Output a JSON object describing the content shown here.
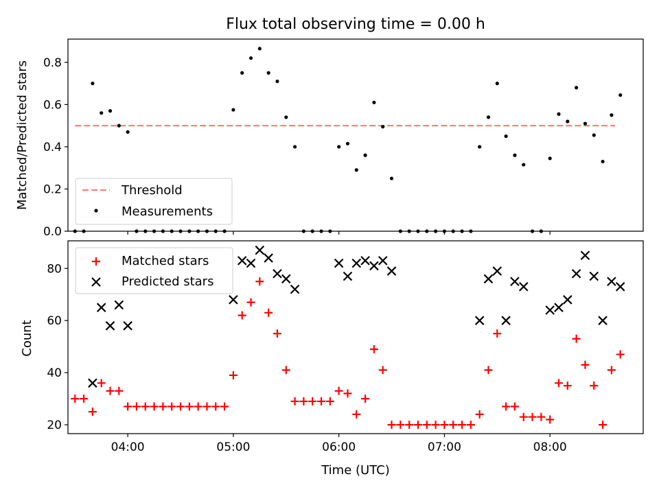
{
  "title": "Flux total observing time = 0.00 h",
  "colors": {
    "threshold": "#ff7f7f",
    "measurements": "#000000",
    "matched": "#ff0000",
    "predicted": "#000000"
  },
  "chart_data": [
    {
      "type": "scatter",
      "title": "Flux total observing time = 0.00 h",
      "xlabel": "",
      "ylabel": "Matched/Predicted stars",
      "xlim": [
        "03:26",
        "08:53"
      ],
      "ylim": [
        0,
        0.91
      ],
      "yticks": [
        "0.0",
        "0.2",
        "0.4",
        "0.6",
        "0.8"
      ],
      "xticks": [
        "04:00",
        "05:00",
        "06:00",
        "07:00",
        "08:00"
      ],
      "show_xticklabels": false,
      "grid": false,
      "legend": {
        "position": "lower left",
        "entries": [
          {
            "label": "Threshold",
            "style": "dashed-line"
          },
          {
            "label": "Measurements",
            "style": "dot"
          }
        ]
      },
      "series": [
        {
          "name": "Threshold",
          "kind": "line",
          "x": [
            "03:30",
            "08:37"
          ],
          "y": [
            0.5,
            0.5
          ]
        },
        {
          "name": "Measurements",
          "kind": "scatter",
          "x": [
            "03:30",
            "03:35",
            "03:40",
            "03:45",
            "03:50",
            "03:55",
            "04:00",
            "04:05",
            "04:10",
            "04:15",
            "04:20",
            "04:25",
            "04:30",
            "04:35",
            "04:40",
            "04:45",
            "04:50",
            "04:55",
            "05:00",
            "05:05",
            "05:10",
            "05:15",
            "05:20",
            "05:25",
            "05:30",
            "05:35",
            "05:40",
            "05:45",
            "05:50",
            "05:55",
            "06:00",
            "06:05",
            "06:10",
            "06:15",
            "06:20",
            "06:25",
            "06:30",
            "06:35",
            "06:40",
            "06:45",
            "06:50",
            "06:55",
            "07:00",
            "07:05",
            "07:10",
            "07:15",
            "07:20",
            "07:25",
            "07:30",
            "07:35",
            "07:40",
            "07:45",
            "07:50",
            "07:55",
            "08:00",
            "08:05",
            "08:10",
            "08:15",
            "08:20",
            "08:25",
            "08:30",
            "08:35",
            "08:40"
          ],
          "y": [
            0,
            0,
            0.7,
            0.56,
            0.57,
            0.5,
            0.47,
            0,
            0,
            0,
            0,
            0,
            0,
            0,
            0,
            0,
            0,
            0,
            0.575,
            0.75,
            0.82,
            0.865,
            0.75,
            0.71,
            0.54,
            0.4,
            0,
            0,
            0,
            0,
            0.4,
            0.415,
            0.29,
            0.36,
            0.61,
            0.495,
            0.25,
            0,
            0,
            0,
            0,
            0,
            0,
            0,
            0,
            0,
            0.4,
            0.54,
            0.7,
            0.45,
            0.36,
            0.315,
            0,
            0,
            0.345,
            0.555,
            0.52,
            0.68,
            0.51,
            0.455,
            0.33,
            0.55,
            0.645
          ]
        }
      ]
    },
    {
      "type": "scatter",
      "xlabel": "Time (UTC)",
      "ylabel": "Count",
      "xlim": [
        "03:26",
        "08:53"
      ],
      "ylim": [
        16.6,
        90.6
      ],
      "yticks": [
        "20",
        "40",
        "60",
        "80"
      ],
      "xticks": [
        "04:00",
        "05:00",
        "06:00",
        "07:00",
        "08:00"
      ],
      "grid": false,
      "legend": {
        "position": "upper left",
        "entries": [
          {
            "label": "Matched stars",
            "style": "plus"
          },
          {
            "label": "Predicted stars",
            "style": "x"
          }
        ]
      },
      "series": [
        {
          "name": "Matched stars",
          "kind": "scatter",
          "marker": "plus",
          "x": [
            "03:30",
            "03:35",
            "03:40",
            "03:45",
            "03:50",
            "03:55",
            "04:00",
            "04:05",
            "04:10",
            "04:15",
            "04:20",
            "04:25",
            "04:30",
            "04:35",
            "04:40",
            "04:45",
            "04:50",
            "04:55",
            "05:00",
            "05:05",
            "05:10",
            "05:15",
            "05:20",
            "05:25",
            "05:30",
            "05:35",
            "05:40",
            "05:45",
            "05:50",
            "05:55",
            "06:00",
            "06:05",
            "06:10",
            "06:15",
            "06:20",
            "06:25",
            "06:30",
            "06:35",
            "06:40",
            "06:45",
            "06:50",
            "06:55",
            "07:00",
            "07:05",
            "07:10",
            "07:15",
            "07:20",
            "07:25",
            "07:30",
            "07:35",
            "07:40",
            "07:45",
            "07:50",
            "07:55",
            "08:00",
            "08:05",
            "08:10",
            "08:15",
            "08:20",
            "08:25",
            "08:30",
            "08:35",
            "08:40"
          ],
          "y": [
            30,
            30,
            25,
            36,
            33,
            33,
            27,
            27,
            27,
            27,
            27,
            27,
            27,
            27,
            27,
            27,
            27,
            27,
            39,
            62,
            67,
            75,
            63,
            55,
            41,
            29,
            29,
            29,
            29,
            29,
            33,
            32,
            24,
            30,
            49,
            41,
            20,
            20,
            20,
            20,
            20,
            20,
            20,
            20,
            20,
            20,
            24,
            41,
            55,
            27,
            27,
            23,
            23,
            23,
            22,
            36,
            35,
            53,
            43,
            35,
            20,
            41,
            47
          ]
        },
        {
          "name": "Predicted stars",
          "kind": "scatter",
          "marker": "x",
          "x": [
            "03:40",
            "03:45",
            "03:50",
            "03:55",
            "04:00",
            "05:00",
            "05:05",
            "05:10",
            "05:15",
            "05:20",
            "05:25",
            "05:30",
            "05:35",
            "06:00",
            "06:05",
            "06:10",
            "06:15",
            "06:20",
            "06:25",
            "06:30",
            "07:20",
            "07:25",
            "07:30",
            "07:35",
            "07:40",
            "07:45",
            "08:00",
            "08:05",
            "08:10",
            "08:15",
            "08:20",
            "08:25",
            "08:30",
            "08:35",
            "08:40"
          ],
          "y": [
            36,
            65,
            58,
            66,
            58,
            68,
            83,
            82,
            87,
            84,
            78,
            76,
            72,
            82,
            77,
            82,
            83,
            81,
            83,
            79,
            60,
            76,
            79,
            60,
            75,
            73,
            64,
            65,
            68,
            78,
            85,
            77,
            60,
            75,
            73
          ]
        }
      ]
    }
  ]
}
